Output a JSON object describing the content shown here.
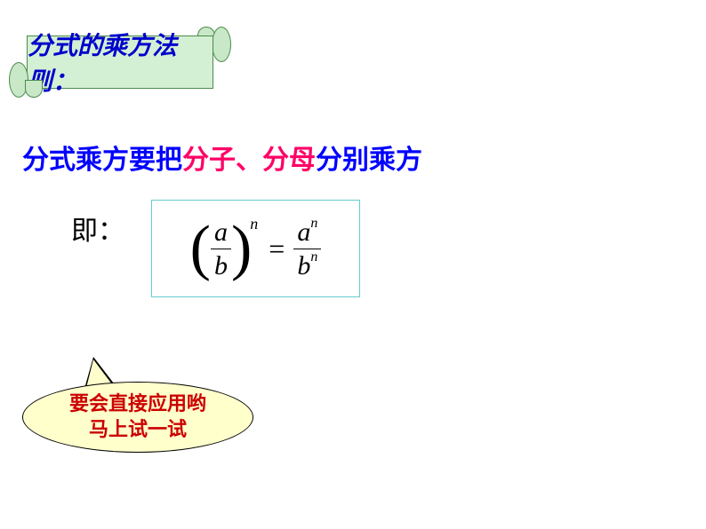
{
  "scroll": {
    "title": "分式的乘方法则：",
    "bg_color": "#d4f0d4",
    "border_color": "#4a8a4a",
    "title_color": "#0000cc"
  },
  "rule": {
    "part1": "分式乘方要把",
    "part2": "分子、分母",
    "part3": "分别乘方",
    "blue_color": "#0000ff",
    "red_color": "#ff0066"
  },
  "formula": {
    "label": "即：",
    "numerator": "a",
    "denominator": "b",
    "exponent": "n",
    "result_num": "a",
    "result_num_exp": "n",
    "result_den": "b",
    "result_den_exp": "n",
    "box_border_color": "#66cccc"
  },
  "bubble": {
    "line1": "要会直接应用哟",
    "line2": "马上试一试",
    "bg_color": "#ffffcc",
    "text_color": "#cc0000"
  }
}
